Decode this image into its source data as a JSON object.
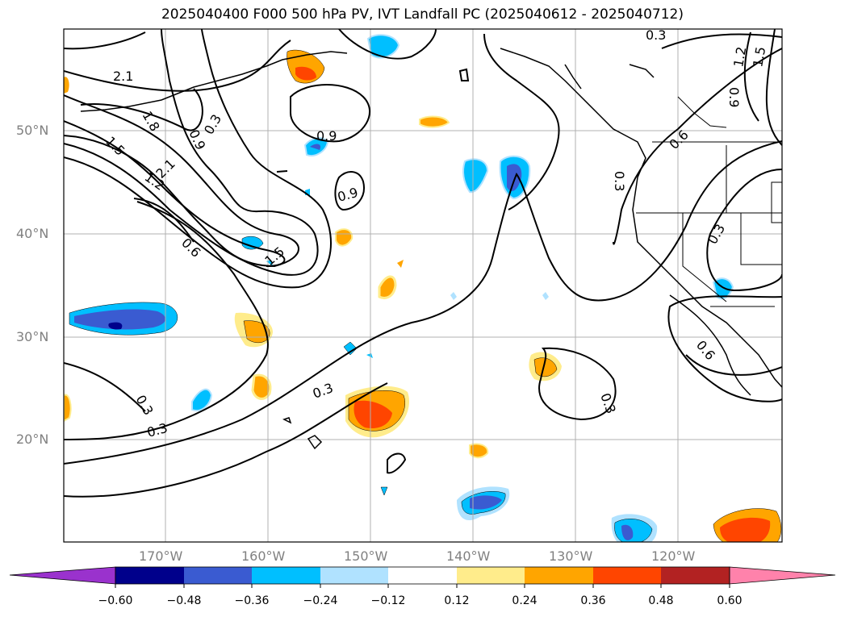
{
  "title": "2025040400 F000 500 hPa PV, IVT Landfall PC (2025040612 - 2025040712)",
  "lat_labels": [
    "50°N",
    "40°N",
    "30°N",
    "20°N"
  ],
  "lon_labels": [
    "170°W",
    "160°W",
    "150°W",
    "140°W",
    "130°W",
    "120°W"
  ],
  "contour_labels": [
    "2.1",
    "1.8",
    "1.5",
    "1.2",
    "2.1",
    "0.9",
    "0.3",
    "0.9",
    "0.9",
    "0.6",
    "1.5",
    "0.3",
    "0.3",
    "0.3",
    "0.3",
    "0.3",
    "0.6",
    "0.9",
    "1.2",
    "1.5",
    "0.6",
    "0.3",
    "0.3"
  ],
  "colorbar": {
    "ticks": [
      "−0.60",
      "−0.48",
      "−0.36",
      "−0.24",
      "−0.12",
      "0.12",
      "0.24",
      "0.36",
      "0.48",
      "0.60"
    ],
    "colors": {
      "under": "#9a32cd",
      "bins": [
        "#00008b",
        "#3a5bd1",
        "#00bfff",
        "#b0e2ff",
        "#ffffff",
        "#ffec8b",
        "#ffa500",
        "#ff4500",
        "#b22222"
      ],
      "over": "#ff82ab"
    }
  }
}
